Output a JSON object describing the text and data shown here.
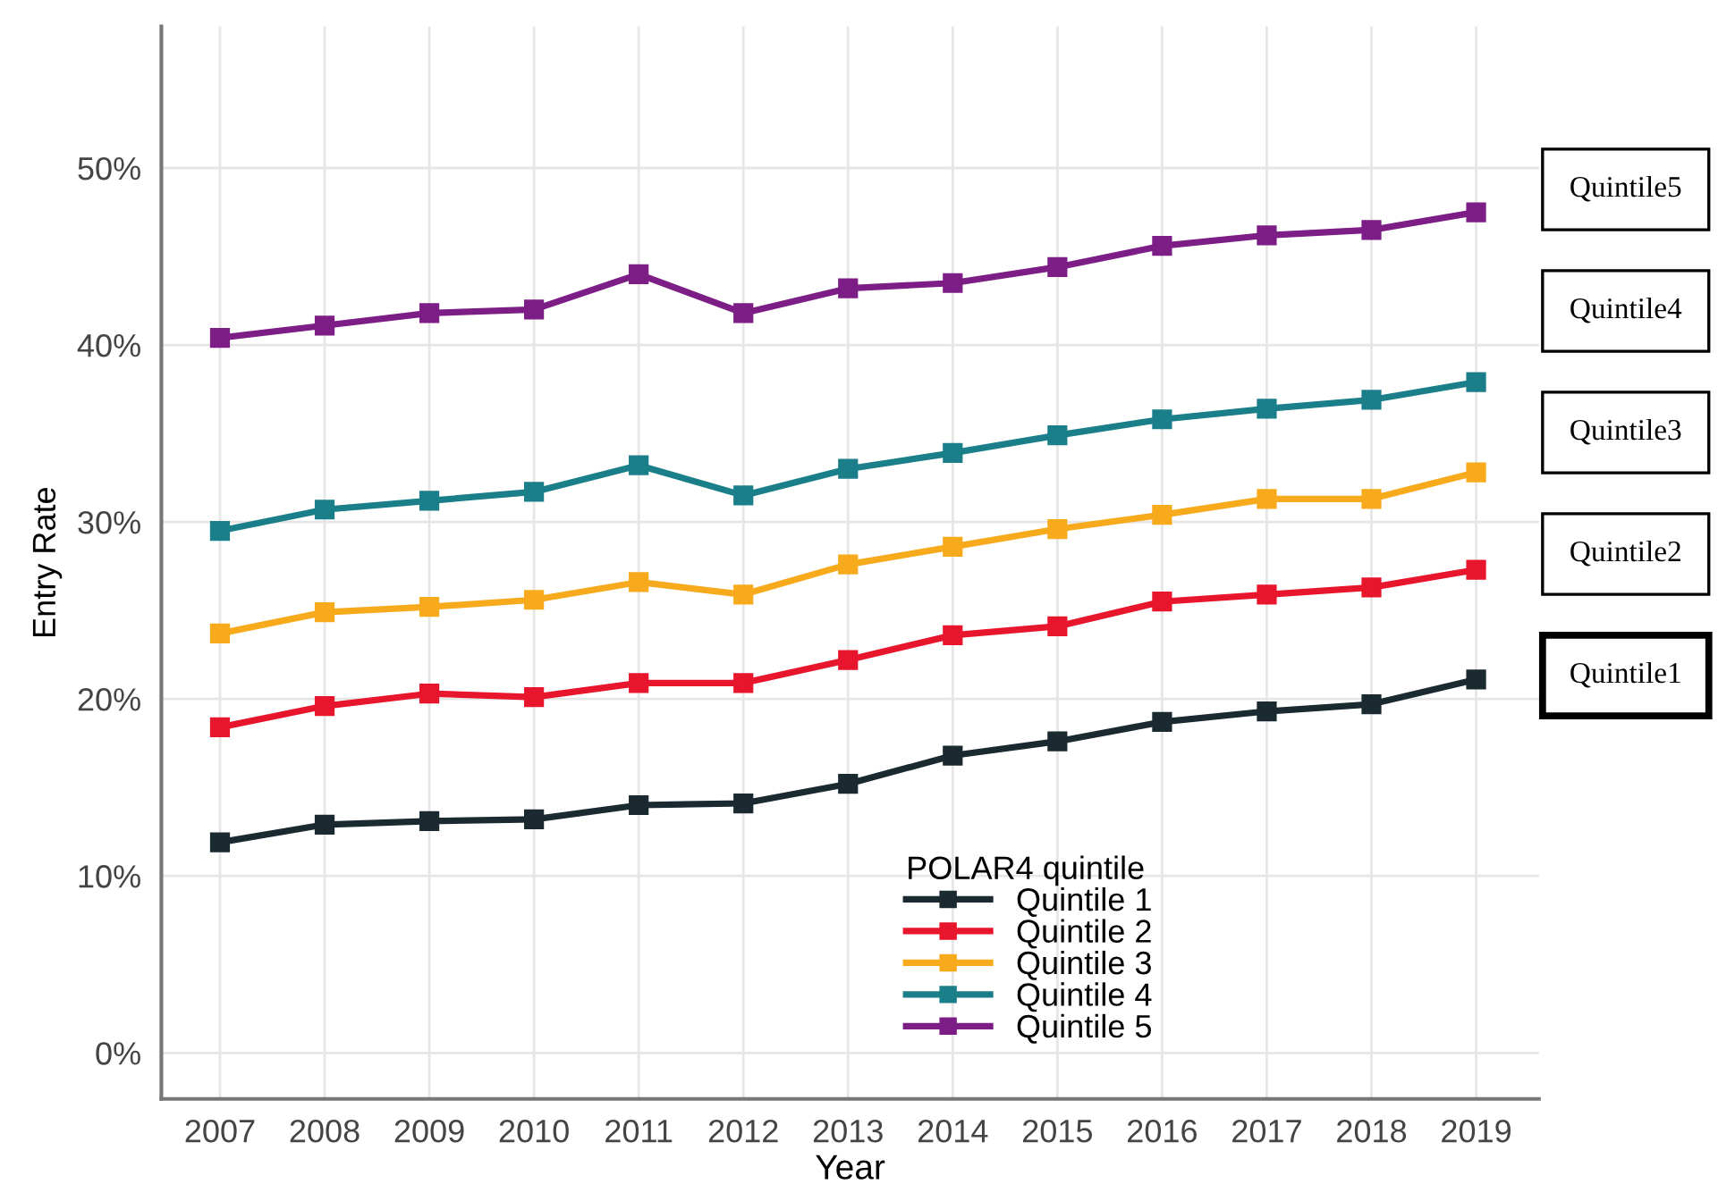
{
  "chart_data": {
    "type": "line",
    "xlabel": "Year",
    "ylabel": "Entry Rate",
    "legend_title": "POLAR4 quintile",
    "x": [
      2007,
      2008,
      2009,
      2010,
      2011,
      2012,
      2013,
      2014,
      2015,
      2016,
      2017,
      2018,
      2019
    ],
    "series": [
      {
        "name": "Quintile 1",
        "color": "#1b2a30",
        "values": [
          11.9,
          12.9,
          13.1,
          13.2,
          14.0,
          14.1,
          15.2,
          16.8,
          17.6,
          18.7,
          19.3,
          19.7,
          21.1
        ]
      },
      {
        "name": "Quintile 2",
        "color": "#e8162d",
        "values": [
          18.4,
          19.6,
          20.3,
          20.1,
          20.9,
          20.9,
          22.2,
          23.6,
          24.1,
          25.5,
          25.9,
          26.3,
          27.3
        ]
      },
      {
        "name": "Quintile 3",
        "color": "#f7aa1c",
        "values": [
          23.7,
          24.9,
          25.2,
          25.6,
          26.6,
          25.9,
          27.6,
          28.6,
          29.6,
          30.4,
          31.3,
          31.3,
          32.8
        ]
      },
      {
        "name": "Quintile 4",
        "color": "#1b7f8a",
        "values": [
          29.5,
          30.7,
          31.2,
          31.7,
          33.2,
          31.5,
          33.0,
          33.9,
          34.9,
          35.8,
          36.4,
          36.9,
          37.9
        ]
      },
      {
        "name": "Quintile 5",
        "color": "#7d1d86",
        "values": [
          40.4,
          41.1,
          41.8,
          42.0,
          44.0,
          41.8,
          43.2,
          43.5,
          44.4,
          45.6,
          46.2,
          46.5,
          47.5
        ]
      }
    ],
    "xlim": [
      2006.44,
      2019.6
    ],
    "xticks": [
      2007,
      2008,
      2009,
      2010,
      2011,
      2012,
      2013,
      2014,
      2015,
      2016,
      2017,
      2018,
      2019
    ],
    "ylim": [
      -2.6,
      58
    ],
    "yticks": [
      {
        "value": 0,
        "label": "0%"
      },
      {
        "value": 10,
        "label": "10%"
      },
      {
        "value": 20,
        "label": "20%"
      },
      {
        "value": 30,
        "label": "30%"
      },
      {
        "value": 40,
        "label": "40%"
      },
      {
        "value": 50,
        "label": "50%"
      }
    ],
    "grid": true,
    "legend": "bottom",
    "marker": "square",
    "line_style": "solid",
    "annotations": [
      "Quintile5",
      "Quintile4",
      "Quintile3",
      "Quintile2",
      "Quintile1"
    ]
  }
}
